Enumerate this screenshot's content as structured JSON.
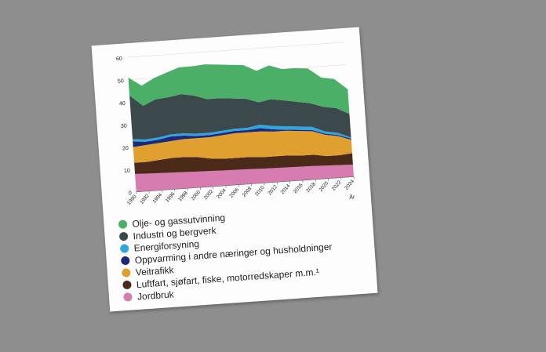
{
  "chart_data": {
    "type": "stacked_area",
    "x_label": "År",
    "x": [
      1990,
      1992,
      1994,
      1996,
      1998,
      2000,
      2002,
      2004,
      2006,
      2008,
      2010,
      2012,
      2014,
      2016,
      2018,
      2020,
      2022,
      2024
    ],
    "xlim": [
      1990,
      2024
    ],
    "xticks": [
      1990,
      1992,
      1994,
      1996,
      1998,
      2000,
      2002,
      2004,
      2006,
      2008,
      2010,
      2012,
      2014,
      2016,
      2018,
      2020,
      2022,
      2024
    ],
    "ylim": [
      0,
      60
    ],
    "yticks": [
      0,
      10,
      20,
      30,
      40,
      50,
      60
    ],
    "grid": true,
    "series": [
      {
        "name": "Jordbruk",
        "color": "#d67cb1",
        "values": [
          8,
          7.8,
          7.6,
          7.5,
          7.3,
          7.1,
          7,
          6.8,
          6.7,
          6.6,
          6.4,
          6.3,
          6.2,
          6.1,
          6,
          5.8,
          5.6,
          5.4
        ]
      },
      {
        "name": "Luftfart, sjøfart, fiske, motorredskaper m.m.¹",
        "color": "#4b2a1a",
        "values": [
          5,
          5.2,
          5.9,
          6.5,
          6.7,
          6.4,
          5.5,
          5.2,
          5.3,
          5.4,
          5.1,
          5.2,
          5.3,
          4.9,
          5,
          4.2,
          4.4,
          5.1
        ]
      },
      {
        "name": "Veitrafikk",
        "color": "#e0a030",
        "values": [
          7,
          7.5,
          7.5,
          7.5,
          8,
          8.5,
          9.5,
          10.5,
          11,
          11,
          11.5,
          11,
          11,
          11,
          10.5,
          9.5,
          8.5,
          6
        ]
      },
      {
        "name": "Oppvarming i andre næringer og husholdninger",
        "color": "#1e2878",
        "values": [
          2.5,
          1.5,
          1.5,
          2,
          1.5,
          1,
          1,
          1,
          1,
          1,
          1.5,
          1,
          0.5,
          0.5,
          0.5,
          0.5,
          0.5,
          0.5
        ]
      },
      {
        "name": "Energiforsyning",
        "color": "#2fa6df",
        "values": [
          1,
          1,
          1,
          1,
          1,
          1,
          1,
          1,
          1,
          1,
          1.5,
          1.5,
          1.5,
          1.5,
          1.5,
          1,
          1,
          0.5
        ]
      },
      {
        "name": "Industri og bergverk",
        "color": "#3b494d",
        "values": [
          19.5,
          15,
          17,
          16.5,
          17.5,
          17,
          15,
          14.5,
          13.5,
          13,
          10,
          12,
          11.5,
          11,
          10.5,
          11,
          11,
          10.5
        ]
      },
      {
        "name": "Olje- og gassutvinning",
        "color": "#4caf68",
        "values": [
          8,
          9,
          9.5,
          11,
          12,
          13,
          15.5,
          15,
          15,
          15,
          14,
          15,
          14,
          15,
          15.5,
          13,
          13,
          11
        ]
      }
    ]
  }
}
